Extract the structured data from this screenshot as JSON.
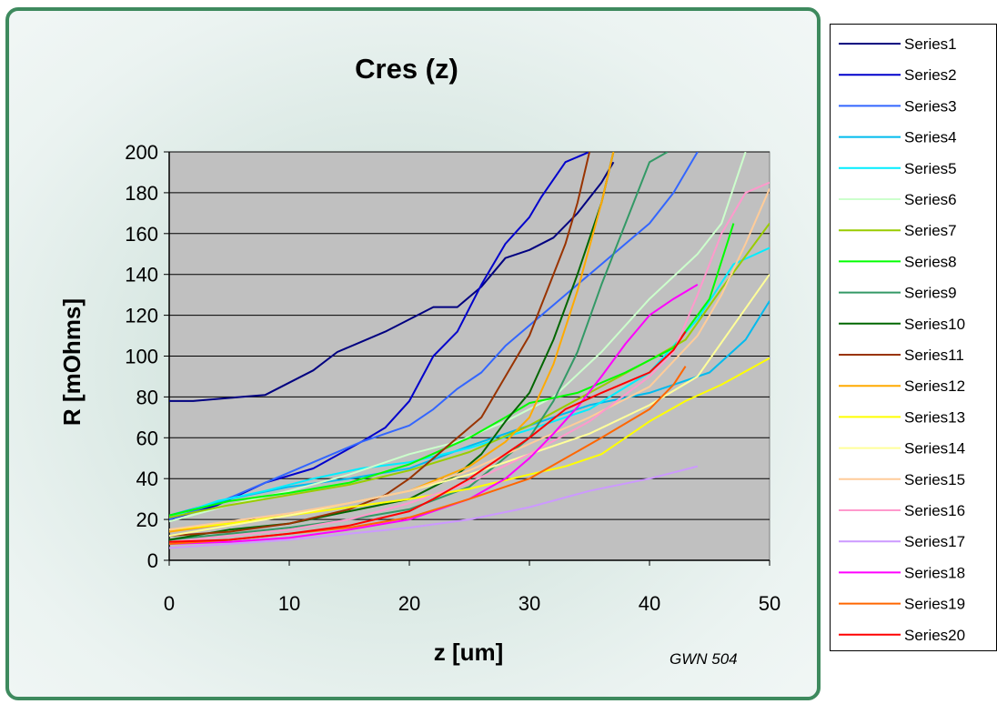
{
  "chart_data": {
    "type": "line",
    "title": "Cres (z)",
    "xlabel": "z [um]",
    "ylabel": "R [mOhms]",
    "annotation": "GWN 504",
    "xlim": [
      0,
      50
    ],
    "ylim": [
      0,
      200
    ],
    "x_ticks": [
      "0",
      "10",
      "20",
      "30",
      "40",
      "50"
    ],
    "y_ticks": [
      "0",
      "20",
      "40",
      "60",
      "80",
      "100",
      "120",
      "140",
      "160",
      "180",
      "200"
    ],
    "grid": "horizontal",
    "plot_background": "#c0c0c0",
    "legend_position": "right",
    "series": [
      {
        "name": "Series1",
        "color": "#000080",
        "x": [
          0,
          2,
          4,
          6,
          8,
          10,
          12,
          14,
          16,
          18,
          20,
          22,
          24,
          26,
          28,
          30,
          32,
          34,
          36,
          37
        ],
        "y": [
          78,
          78,
          79,
          80,
          81,
          87,
          93,
          102,
          107,
          112,
          118,
          124,
          124,
          134,
          148,
          152,
          158,
          170,
          185,
          195
        ]
      },
      {
        "name": "Series2",
        "color": "#0000cc",
        "x": [
          0,
          4,
          8,
          12,
          16,
          18,
          20,
          22,
          24,
          26,
          28,
          30,
          31,
          33,
          35
        ],
        "y": [
          20,
          27,
          38,
          45,
          58,
          65,
          78,
          100,
          112,
          135,
          155,
          168,
          178,
          195,
          200
        ]
      },
      {
        "name": "Series3",
        "color": "#3366ff",
        "x": [
          0,
          4,
          8,
          12,
          16,
          20,
          22,
          24,
          26,
          28,
          30,
          32,
          34,
          36,
          38,
          40,
          42,
          44
        ],
        "y": [
          20,
          28,
          38,
          48,
          58,
          66,
          74,
          84,
          92,
          105,
          115,
          125,
          135,
          145,
          155,
          165,
          180,
          200
        ]
      },
      {
        "name": "Series4",
        "color": "#00bbee",
        "x": [
          0,
          5,
          10,
          15,
          20,
          25,
          30,
          35,
          40,
          45,
          48,
          50
        ],
        "y": [
          22,
          30,
          36,
          40,
          45,
          56,
          66,
          76,
          82,
          92,
          108,
          127
        ]
      },
      {
        "name": "Series5",
        "color": "#00eeff",
        "x": [
          0,
          4,
          8,
          12,
          16,
          20,
          25,
          30,
          35,
          40,
          44,
          47,
          50
        ],
        "y": [
          21,
          29,
          34,
          40,
          45,
          48,
          55,
          64,
          74,
          92,
          118,
          145,
          153
        ]
      },
      {
        "name": "Series6",
        "color": "#ccffcc",
        "x": [
          0,
          5,
          10,
          15,
          20,
          24,
          28,
          32,
          36,
          40,
          44,
          46,
          48
        ],
        "y": [
          19,
          27,
          34,
          42,
          52,
          58,
          68,
          80,
          102,
          128,
          150,
          165,
          200
        ]
      },
      {
        "name": "Series7",
        "color": "#99cc00",
        "x": [
          0,
          5,
          10,
          15,
          20,
          25,
          30,
          35,
          40,
          43,
          46,
          50
        ],
        "y": [
          21,
          27,
          32,
          37,
          44,
          53,
          66,
          82,
          98,
          108,
          133,
          165
        ]
      },
      {
        "name": "Series8",
        "color": "#00ff00",
        "x": [
          0,
          5,
          10,
          15,
          20,
          25,
          28,
          30,
          34,
          38,
          42,
          45,
          47
        ],
        "y": [
          22,
          29,
          33,
          38,
          47,
          60,
          70,
          77,
          82,
          92,
          104,
          128,
          165
        ]
      },
      {
        "name": "Series9",
        "color": "#339966",
        "x": [
          0,
          5,
          10,
          15,
          20,
          25,
          30,
          32,
          34,
          36,
          38,
          40,
          41.5
        ],
        "y": [
          10,
          13,
          16,
          20,
          25,
          36,
          60,
          78,
          102,
          135,
          165,
          195,
          200
        ]
      },
      {
        "name": "Series10",
        "color": "#006600",
        "x": [
          0,
          5,
          10,
          15,
          20,
          24,
          26,
          28,
          30,
          32,
          34,
          36,
          37
        ],
        "y": [
          10,
          15,
          18,
          24,
          30,
          42,
          52,
          68,
          82,
          108,
          140,
          175,
          200
        ]
      },
      {
        "name": "Series11",
        "color": "#993300",
        "x": [
          0,
          5,
          10,
          15,
          18,
          20,
          22,
          24,
          26,
          28,
          30,
          32,
          33,
          34,
          35
        ],
        "y": [
          12,
          14,
          18,
          25,
          32,
          40,
          50,
          60,
          70,
          90,
          110,
          140,
          155,
          175,
          200
        ]
      },
      {
        "name": "Series12",
        "color": "#ffaa00",
        "x": [
          0,
          5,
          10,
          15,
          20,
          25,
          28,
          30,
          32,
          34,
          36,
          37
        ],
        "y": [
          14,
          18,
          22,
          28,
          34,
          46,
          58,
          70,
          96,
          132,
          175,
          200
        ]
      },
      {
        "name": "Series13",
        "color": "#ffff00",
        "x": [
          0,
          5,
          10,
          15,
          20,
          25,
          30,
          33,
          36,
          38,
          40,
          43,
          46,
          50
        ],
        "y": [
          15,
          18,
          22,
          26,
          30,
          35,
          42,
          46,
          52,
          60,
          68,
          78,
          86,
          99
        ]
      },
      {
        "name": "Series14",
        "color": "#ffff99",
        "x": [
          0,
          5,
          10,
          15,
          20,
          25,
          30,
          35,
          40,
          44,
          47,
          50
        ],
        "y": [
          12,
          17,
          22,
          28,
          34,
          42,
          52,
          62,
          76,
          90,
          115,
          140
        ]
      },
      {
        "name": "Series15",
        "color": "#ffcc99",
        "x": [
          0,
          5,
          10,
          15,
          20,
          25,
          30,
          35,
          40,
          44,
          46,
          48,
          50
        ],
        "y": [
          15,
          19,
          23,
          28,
          34,
          44,
          57,
          70,
          85,
          110,
          130,
          155,
          182
        ]
      },
      {
        "name": "Series16",
        "color": "#ff99cc",
        "x": [
          0,
          5,
          10,
          15,
          20,
          25,
          30,
          35,
          40,
          42,
          44,
          46,
          48,
          50
        ],
        "y": [
          9,
          12,
          15,
          20,
          28,
          38,
          52,
          68,
          90,
          102,
          130,
          160,
          180,
          185
        ]
      },
      {
        "name": "Series17",
        "color": "#cc99ff",
        "x": [
          0,
          5,
          10,
          15,
          20,
          25,
          30,
          35,
          40,
          44
        ],
        "y": [
          6,
          8,
          10,
          13,
          16,
          20,
          26,
          34,
          40,
          46
        ]
      },
      {
        "name": "Series18",
        "color": "#ff00ff",
        "x": [
          0,
          5,
          10,
          15,
          20,
          25,
          28,
          30,
          32,
          34,
          36,
          38,
          40,
          42,
          44
        ],
        "y": [
          8,
          9,
          11,
          15,
          20,
          30,
          40,
          50,
          62,
          75,
          90,
          106,
          120,
          128,
          135
        ]
      },
      {
        "name": "Series19",
        "color": "#ff6600",
        "x": [
          0,
          5,
          10,
          15,
          20,
          25,
          30,
          33,
          36,
          40,
          42,
          43
        ],
        "y": [
          8,
          10,
          13,
          16,
          21,
          30,
          40,
          50,
          60,
          74,
          86,
          95
        ]
      },
      {
        "name": "Series20",
        "color": "#ff0000",
        "x": [
          0,
          5,
          10,
          15,
          20,
          22,
          25,
          28,
          30,
          33,
          36,
          40,
          42,
          43
        ],
        "y": [
          9,
          10,
          13,
          17,
          24,
          30,
          40,
          52,
          60,
          74,
          82,
          92,
          103,
          112
        ]
      }
    ]
  }
}
